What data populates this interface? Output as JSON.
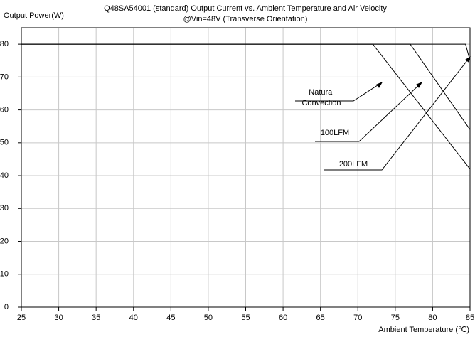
{
  "chart_data": {
    "type": "line",
    "title": "Q48SA54001 (standard)  Output Current vs. Ambient Temperature and Air Velocity",
    "subtitle": "@Vin=48V (Transverse Orientation)",
    "y_label": "Output Power(W)",
    "x_label": "Ambient Temperature (℃)",
    "xlim": [
      25,
      85
    ],
    "ylim": [
      0,
      85
    ],
    "xticks": [
      25,
      30,
      35,
      40,
      45,
      50,
      55,
      60,
      65,
      70,
      75,
      80,
      85
    ],
    "yticks": [
      0,
      10,
      20,
      30,
      40,
      50,
      60,
      70,
      80
    ],
    "grid": true,
    "series": [
      {
        "color": "#000000",
        "x": [
          25,
          72,
          85
        ],
        "values": [
          80,
          80,
          42
        ]
      },
      {
        "color": "#000000",
        "x": [
          25,
          77,
          85
        ],
        "values": [
          80,
          80,
          54
        ]
      },
      {
        "color": "#000000",
        "x": [
          25,
          84.4,
          85
        ],
        "values": [
          80,
          80,
          75
        ]
      }
    ],
    "annotations": [
      "Natural",
      "Convection",
      "100LFM",
      "200LFM"
    ]
  }
}
